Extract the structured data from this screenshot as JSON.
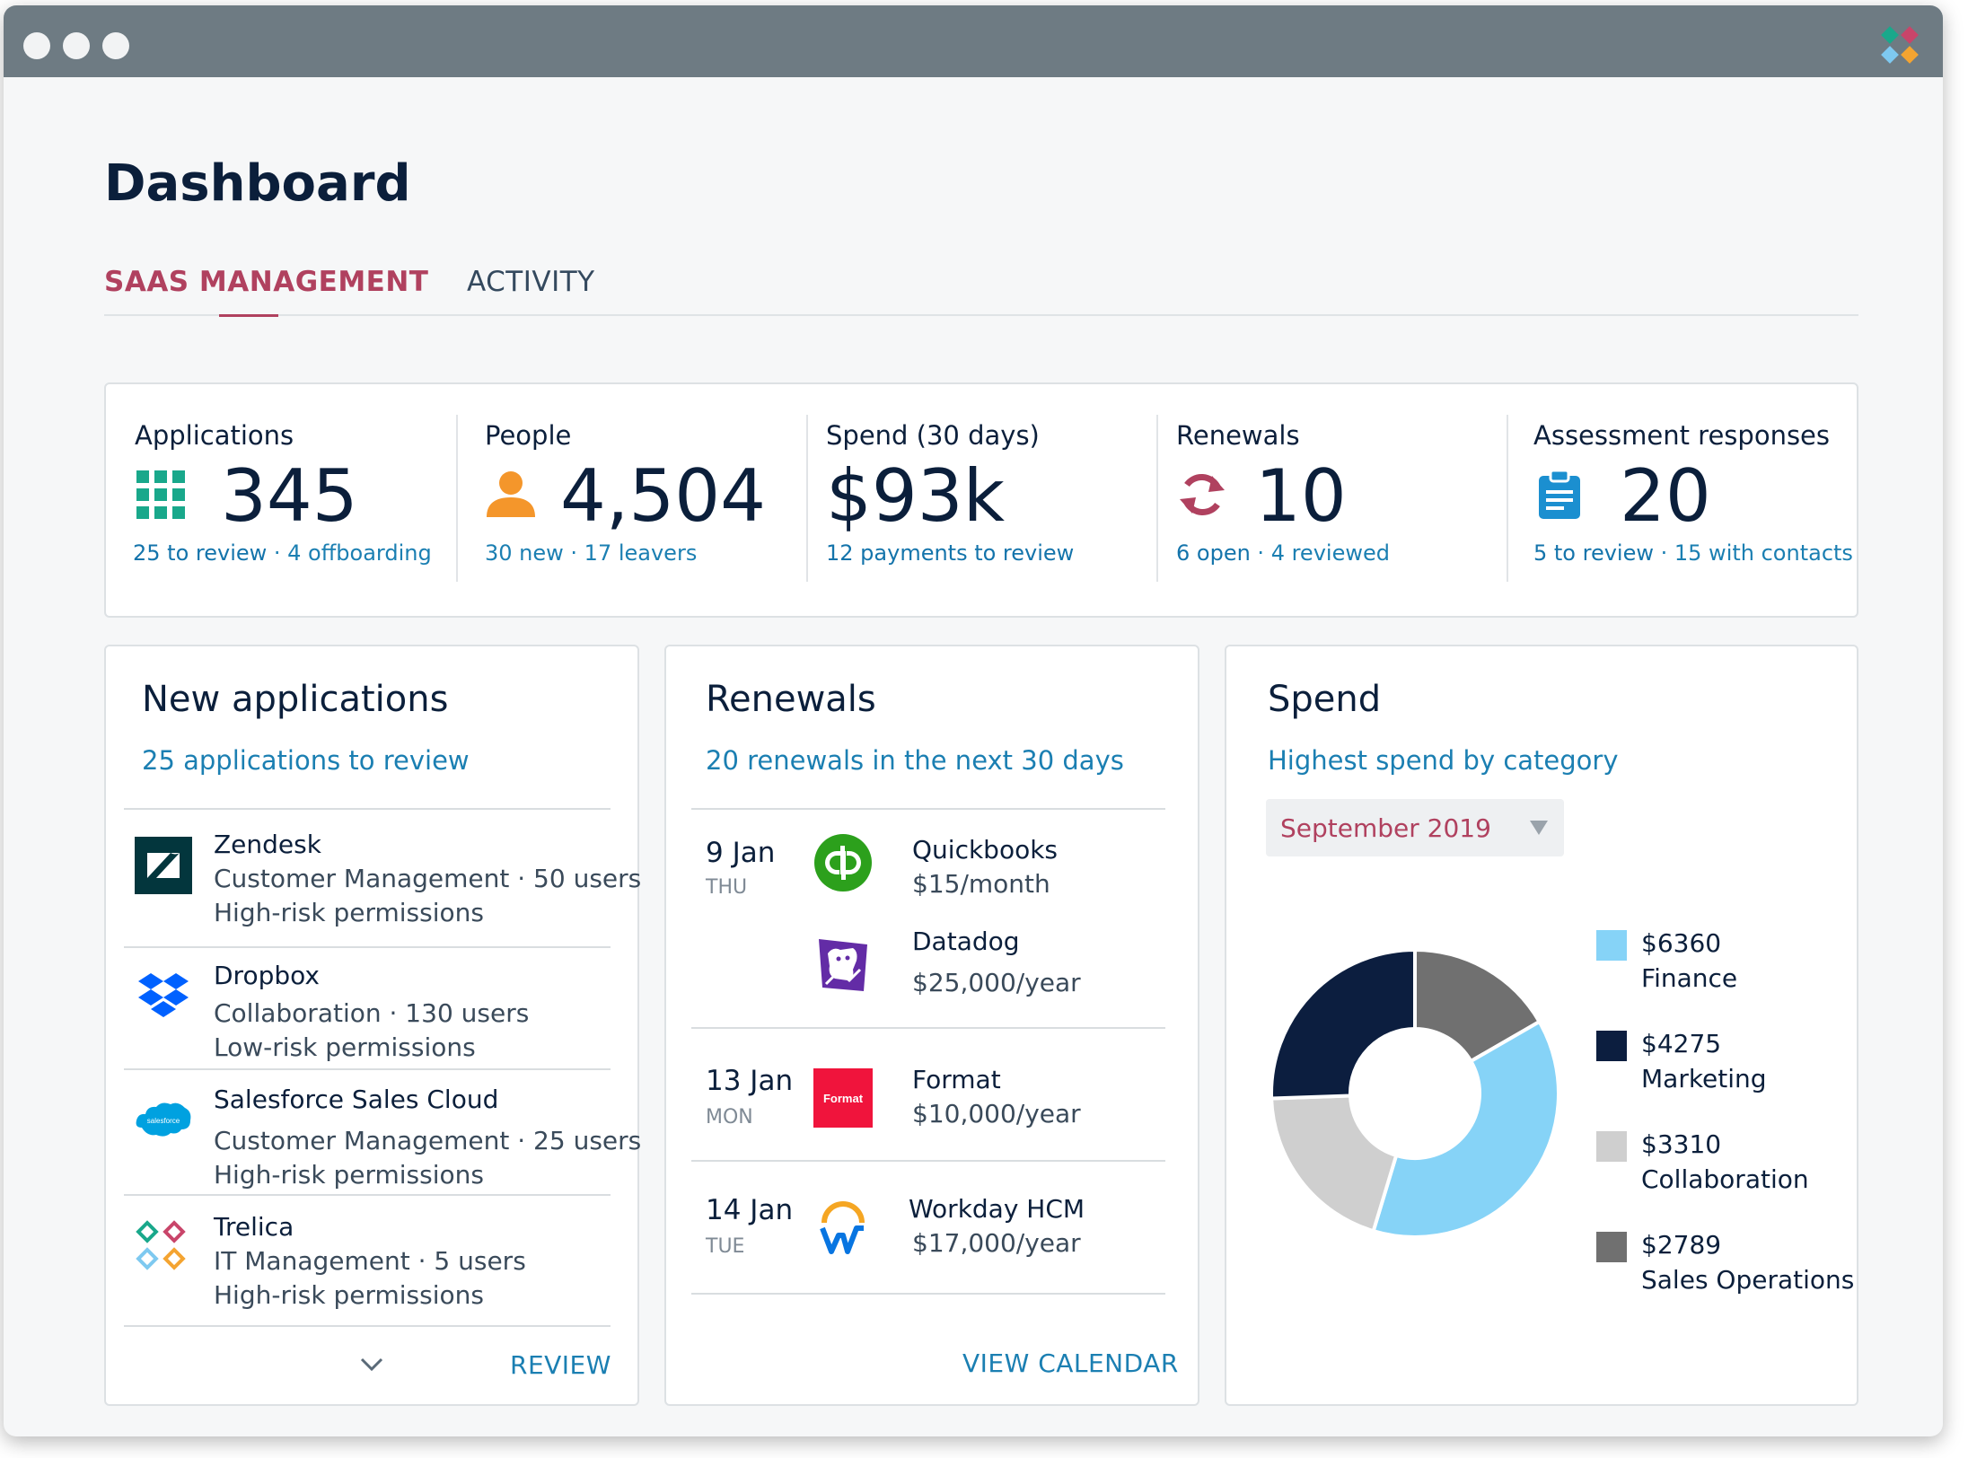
{
  "page": {
    "title": "Dashboard"
  },
  "tabs": [
    {
      "label": "SAAS MANAGEMENT",
      "active": true
    },
    {
      "label": "ACTIVITY",
      "active": false
    }
  ],
  "colors": {
    "accent": "#b0415f",
    "link": "#1b7fb2",
    "navy": "#0b1f3b",
    "titlebar": "#6e7b83"
  },
  "stats": [
    {
      "label": "Applications",
      "value": "345",
      "icon": "grid-icon",
      "sub_a": "25 to review",
      "sub_sep": " · ",
      "sub_b": "4 offboarding"
    },
    {
      "label": "People",
      "value": "4,504",
      "icon": "person-icon",
      "sub_a": "30 new",
      "sub_sep": " · ",
      "sub_b": "17 leavers"
    },
    {
      "label": "Spend (30 days)",
      "value": "$93k",
      "icon": "",
      "sub_a": "12 payments to review",
      "sub_sep": "",
      "sub_b": ""
    },
    {
      "label": "Renewals",
      "value": "10",
      "icon": "refresh-icon",
      "sub_a": "6 open",
      "sub_sep": " · ",
      "sub_b": "4 reviewed"
    },
    {
      "label": "Assessment responses",
      "value": "20",
      "icon": "clipboard-icon",
      "sub_a": "5 to review",
      "sub_sep": " · ",
      "sub_b": "15 with contacts"
    }
  ],
  "new_apps": {
    "title": "New applications",
    "subtitle": "25 applications to review",
    "items": [
      {
        "name": "Zendesk",
        "meta": "Customer Management · 50 users",
        "risk": "High-risk permissions",
        "logo": "zendesk-logo"
      },
      {
        "name": "Dropbox",
        "meta": "Collaboration · 130 users",
        "risk": "Low-risk permissions",
        "logo": "dropbox-logo"
      },
      {
        "name": "Salesforce Sales Cloud",
        "meta": "Customer Management · 25 users",
        "risk": "High-risk permissions",
        "logo": "salesforce-logo",
        "logo_text": "salesforce"
      },
      {
        "name": "Trelica",
        "meta": "IT Management · 5 users",
        "risk": "High-risk permissions",
        "logo": "trelica-logo"
      }
    ],
    "action": "REVIEW"
  },
  "renewals": {
    "title": "Renewals",
    "subtitle": "20 renewals in the next 30 days",
    "groups": [
      {
        "date": "9 Jan",
        "day": "THU",
        "items": [
          {
            "name": "Quickbooks",
            "price": "$15/month",
            "logo": "quickbooks-logo"
          },
          {
            "name": "Datadog",
            "price": "$25,000/year",
            "logo": "datadog-logo"
          }
        ]
      },
      {
        "date": "13 Jan",
        "day": "MON",
        "items": [
          {
            "name": "Format",
            "price": "$10,000/year",
            "logo": "format-logo",
            "logo_text": "Format"
          }
        ]
      },
      {
        "date": "14 Jan",
        "day": "TUE",
        "items": [
          {
            "name": "Workday HCM",
            "price": "$17,000/year",
            "logo": "workday-logo"
          }
        ]
      }
    ],
    "action": "VIEW CALENDAR"
  },
  "spend": {
    "title": "Spend",
    "subtitle": "Highest spend by category",
    "period": "September 2019"
  },
  "chart_data": {
    "type": "pie",
    "donut": true,
    "title": "",
    "categories": [
      "Finance",
      "Marketing",
      "Collaboration",
      "Sales Operations"
    ],
    "values": [
      6360,
      4275,
      3310,
      2789
    ],
    "labels": [
      "$6360",
      "$4275",
      "$3310",
      "$2789"
    ],
    "colors": [
      "#86d3f7",
      "#0c1e3f",
      "#cfcfcf",
      "#707070"
    ],
    "legend_position": "right"
  }
}
